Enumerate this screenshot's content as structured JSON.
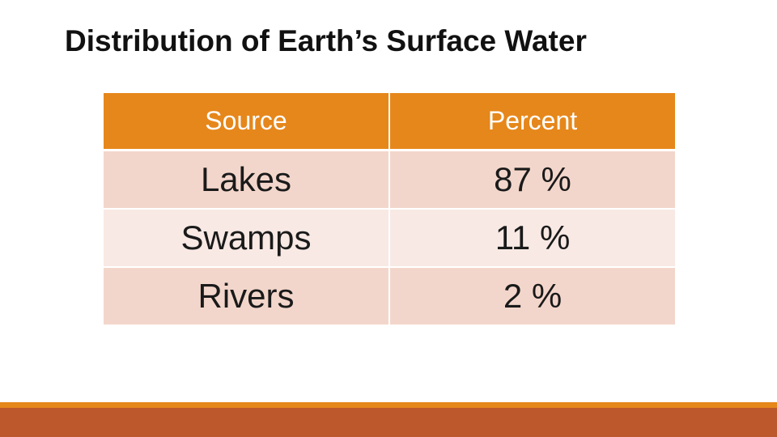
{
  "slide": {
    "title": "Distribution of Earth’s Surface Water"
  },
  "table": {
    "headers": {
      "source": "Source",
      "percent": "Percent"
    },
    "rows": [
      {
        "source": "Lakes",
        "percent": "87 %"
      },
      {
        "source": "Swamps",
        "percent": "11 %"
      },
      {
        "source": "Rivers",
        "percent": "2 %"
      }
    ]
  },
  "colors": {
    "header_bg": "#e6871b",
    "row_dark": "#f3d6cb",
    "row_light": "#f8e9e4",
    "footer_strip": "#e6871b",
    "footer_bar": "#bd582c"
  }
}
